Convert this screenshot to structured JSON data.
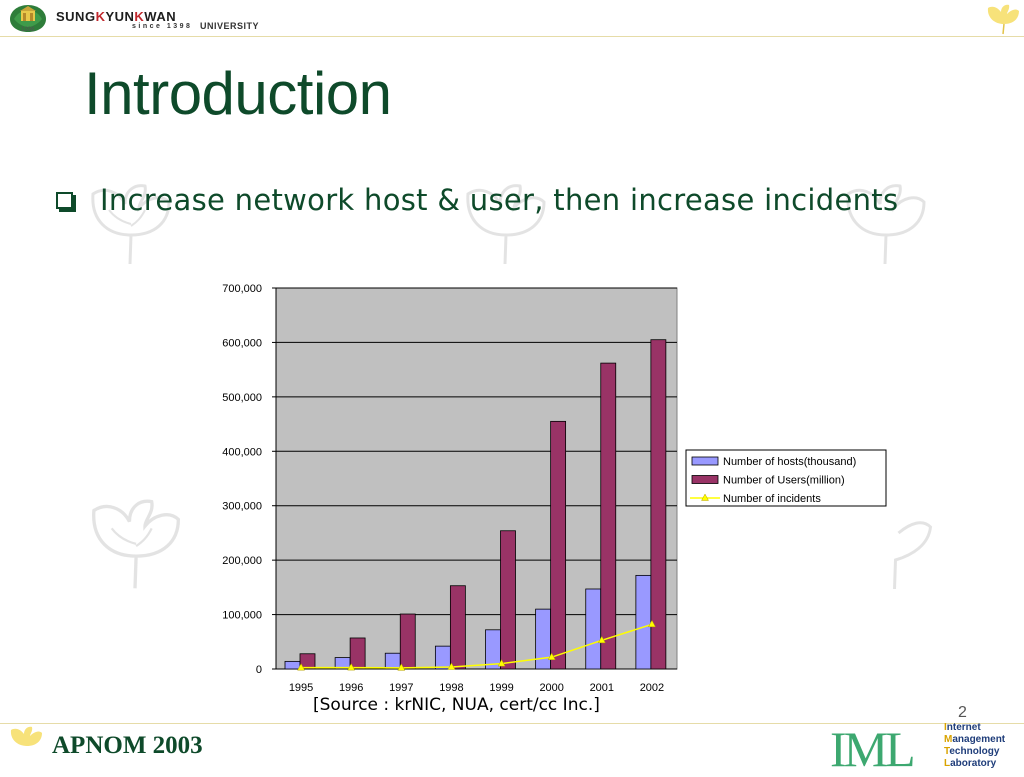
{
  "header": {
    "university_name_prefix": "SUNG",
    "university_name_k": "K",
    "university_name_rest": "YUN",
    "university_name_k2": "K",
    "university_name_end": "WAN",
    "university_since": "since 1398",
    "university_suffix": "UNIVERSITY",
    "university_year": "1398"
  },
  "slide": {
    "title": "Introduction",
    "bullet": "Increase network host & user, then increase incidents",
    "source": "[Source : krNIC, NUA, cert/cc Inc.]",
    "page_number": "2"
  },
  "footer": {
    "conference": "APNOM 2003",
    "logo_text": "IML",
    "lab_lines": [
      {
        "first": "I",
        "rest": "nternet"
      },
      {
        "first": "M",
        "rest": "anagement"
      },
      {
        "first": "T",
        "rest": "echnology"
      },
      {
        "first": "L",
        "rest": "aboratory"
      }
    ]
  },
  "colors": {
    "title_green": "#0e4a2a",
    "hosts_bar": "#9999ff",
    "users_bar": "#993366",
    "incidents_line": "#ffff00",
    "plot_background": "#c0c0c0",
    "leaf_yellow": "#f7e27a"
  },
  "chart_data": {
    "type": "bar",
    "categories": [
      "1995",
      "1996",
      "1997",
      "1998",
      "1999",
      "2000",
      "2001",
      "2002"
    ],
    "series": [
      {
        "name": "Number of hosts(thousand)",
        "kind": "bar",
        "values": [
          14000,
          21000,
          29000,
          42000,
          72000,
          110000,
          147000,
          172000
        ]
      },
      {
        "name": "Number of Users(million)",
        "kind": "bar",
        "values": [
          28000,
          57000,
          101000,
          153000,
          254000,
          455000,
          562000,
          605000
        ]
      },
      {
        "name": "Number of incidents",
        "kind": "line",
        "values": [
          2412,
          2573,
          2134,
          3734,
          9859,
          21756,
          52658,
          82094
        ]
      }
    ],
    "ylim": [
      0,
      700000
    ],
    "y_ticks": [
      "0",
      "100,000",
      "200,000",
      "300,000",
      "400,000",
      "500,000",
      "600,000",
      "700,000"
    ],
    "y_tick_values": [
      0,
      100000,
      200000,
      300000,
      400000,
      500000,
      600000,
      700000
    ],
    "title": "",
    "xlabel": "",
    "ylabel": "",
    "legend_position": "right",
    "grid": "horizontal"
  }
}
